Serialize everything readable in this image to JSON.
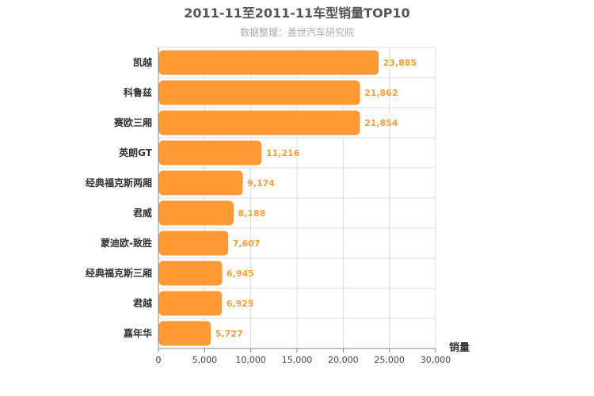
{
  "chart_data": {
    "type": "bar",
    "orientation": "horizontal",
    "title": "2011-11至2011-11车型销量TOP10",
    "subtitle": "数据整理：盖世汽车研究院",
    "xlabel": "销量",
    "ylabel": "",
    "categories": [
      "凯越",
      "科鲁兹",
      "赛欧三厢",
      "英朗GT",
      "经典福克斯两厢",
      "君威",
      "蒙迪欧-致胜",
      "经典福克斯三厢",
      "君越",
      "嘉年华"
    ],
    "values": [
      23885,
      21862,
      21854,
      11216,
      9174,
      8188,
      7607,
      6945,
      6925,
      5727
    ],
    "value_labels": [
      "23,885",
      "21,862",
      "21,854",
      "11,216",
      "9,174",
      "8,188",
      "7,607",
      "6,945",
      "6,925",
      "5,727"
    ],
    "xlim": [
      0,
      30000
    ],
    "xticks": [
      0,
      5000,
      10000,
      15000,
      20000,
      25000,
      30000
    ],
    "xtick_labels": [
      "0",
      "5,000",
      "10,000",
      "15,000",
      "20,000",
      "25,000",
      "30,000"
    ],
    "grid": true,
    "legend": "none",
    "colors": {
      "bar": "#ff9933",
      "bar_stroke": "#ffffff",
      "data_label": "#f5a03a"
    }
  }
}
